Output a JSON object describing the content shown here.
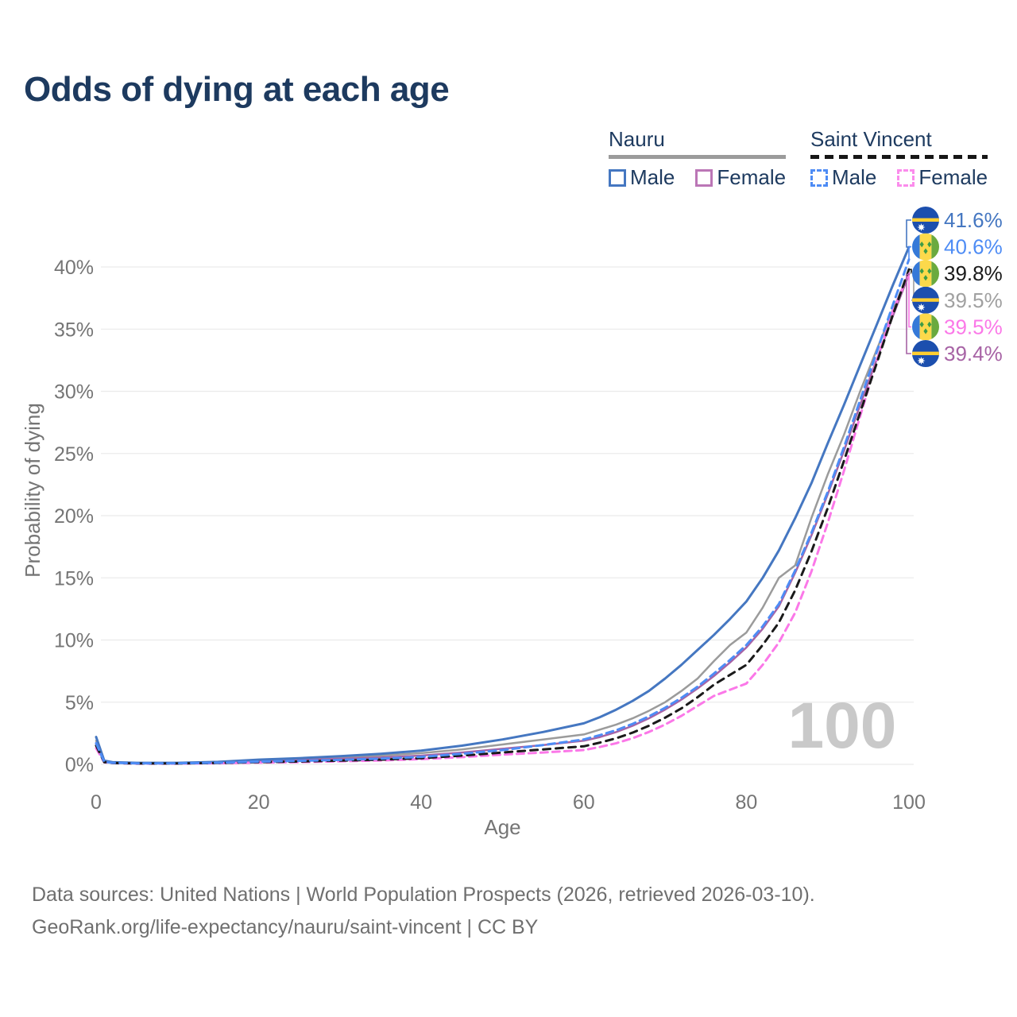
{
  "title": "Odds of dying at each age",
  "legend": {
    "groups": [
      {
        "name": "Nauru",
        "line_style": "solid",
        "underline_color": "#9b9b9b",
        "items": [
          {
            "label": "Male",
            "color": "#4577c1",
            "dashed": false
          },
          {
            "label": "Female",
            "color": "#bb76b6",
            "dashed": false
          }
        ]
      },
      {
        "name": "Saint Vincent",
        "line_style": "dashed",
        "underline_color": "#161616",
        "items": [
          {
            "label": "Male",
            "color": "#4e8cf5",
            "dashed": true
          },
          {
            "label": "Female",
            "color": "#fb8cec",
            "dashed": true
          }
        ]
      }
    ]
  },
  "chart_data": {
    "type": "line",
    "title": "Odds of dying at each age",
    "xlabel": "Age",
    "ylabel": "Probability of dying",
    "xlim": [
      0,
      100
    ],
    "ylim": [
      0,
      43.5
    ],
    "grid": "horizontal",
    "x_ticks": [
      0,
      20,
      40,
      60,
      80,
      100
    ],
    "x_tick_labels": [
      "0",
      "20",
      "40",
      "60",
      "80",
      "100"
    ],
    "y_ticks": [
      0,
      5,
      10,
      15,
      20,
      25,
      30,
      35,
      40
    ],
    "y_tick_labels": [
      "0%",
      "5%",
      "10%",
      "15%",
      "20%",
      "25%",
      "30%",
      "35%",
      "40%"
    ],
    "hover_age_indicator": "100",
    "legend_position": "top-right",
    "x": [
      0,
      1,
      2,
      5,
      10,
      15,
      20,
      25,
      30,
      35,
      40,
      45,
      50,
      55,
      60,
      62,
      64,
      66,
      68,
      70,
      72,
      74,
      76,
      78,
      80,
      82,
      84,
      86,
      88,
      90,
      92,
      94,
      96,
      98,
      100
    ],
    "series": [
      {
        "name": "Nauru Both sexes",
        "country": "Nauru",
        "sex": "Both",
        "color": "#9b9b9b",
        "dash": "",
        "width": 2.5,
        "values": [
          1.9,
          0.28,
          0.16,
          0.1,
          0.1,
          0.18,
          0.33,
          0.42,
          0.55,
          0.7,
          0.9,
          1.2,
          1.6,
          2.0,
          2.4,
          2.8,
          3.2,
          3.7,
          4.3,
          5.0,
          5.9,
          6.9,
          8.3,
          9.6,
          10.6,
          12.6,
          15.0,
          16.0,
          19.8,
          23.3,
          26.5,
          30.0,
          33.3,
          36.5,
          39.5
        ]
      },
      {
        "name": "Nauru Female",
        "country": "Nauru",
        "sex": "Female",
        "color": "#a763a5",
        "dash": "",
        "width": 2.5,
        "values": [
          1.6,
          0.22,
          0.13,
          0.09,
          0.09,
          0.15,
          0.28,
          0.35,
          0.45,
          0.55,
          0.7,
          0.95,
          1.25,
          1.55,
          1.9,
          2.2,
          2.6,
          3.1,
          3.7,
          4.4,
          5.2,
          6.1,
          7.1,
          8.2,
          9.4,
          10.9,
          12.7,
          15.4,
          18.4,
          21.7,
          25.2,
          28.9,
          32.5,
          36.0,
          39.4
        ]
      },
      {
        "name": "Nauru Male",
        "country": "Nauru",
        "sex": "Male",
        "color": "#4577c1",
        "dash": "",
        "width": 3,
        "values": [
          2.2,
          0.3,
          0.18,
          0.12,
          0.12,
          0.2,
          0.38,
          0.5,
          0.65,
          0.85,
          1.1,
          1.5,
          2.0,
          2.6,
          3.3,
          3.8,
          4.4,
          5.1,
          5.9,
          6.9,
          8.0,
          9.2,
          10.4,
          11.7,
          13.1,
          15.0,
          17.2,
          19.8,
          22.6,
          25.8,
          28.9,
          32.1,
          35.3,
          38.5,
          41.6
        ]
      },
      {
        "name": "Saint Vincent Female",
        "country": "Saint Vincent",
        "sex": "Female",
        "color": "#fb78e8",
        "dash": "9 6",
        "width": 3,
        "values": [
          1.3,
          0.16,
          0.1,
          0.06,
          0.06,
          0.09,
          0.14,
          0.18,
          0.24,
          0.31,
          0.42,
          0.58,
          0.78,
          0.95,
          1.15,
          1.4,
          1.7,
          2.1,
          2.6,
          3.2,
          3.9,
          4.7,
          5.5,
          6.0,
          6.5,
          8.0,
          9.8,
          12.2,
          15.5,
          19.4,
          23.6,
          28.0,
          32.4,
          36.4,
          39.5
        ]
      },
      {
        "name": "Saint Vincent Both sexes",
        "country": "Saint Vincent",
        "sex": "Both",
        "color": "#1a1a1a",
        "dash": "9 7",
        "width": 3,
        "values": [
          1.5,
          0.18,
          0.11,
          0.07,
          0.07,
          0.11,
          0.18,
          0.23,
          0.3,
          0.38,
          0.5,
          0.7,
          0.95,
          1.2,
          1.45,
          1.75,
          2.1,
          2.55,
          3.1,
          3.75,
          4.5,
          5.4,
          6.4,
          7.2,
          8.0,
          9.6,
          11.4,
          14.0,
          17.1,
          20.6,
          24.4,
          28.3,
          32.2,
          36.1,
          39.8
        ]
      },
      {
        "name": "Saint Vincent Male",
        "country": "Saint Vincent",
        "sex": "Male",
        "color": "#4e8cf5",
        "dash": "9 6",
        "width": 3,
        "values": [
          1.7,
          0.2,
          0.12,
          0.08,
          0.08,
          0.13,
          0.22,
          0.28,
          0.36,
          0.46,
          0.6,
          0.85,
          1.15,
          1.55,
          2.0,
          2.35,
          2.75,
          3.25,
          3.85,
          4.55,
          5.35,
          6.25,
          7.3,
          8.4,
          9.6,
          11.1,
          12.9,
          15.6,
          18.6,
          21.9,
          25.5,
          29.3,
          33.1,
          36.9,
          40.6
        ]
      }
    ],
    "end_labels": [
      {
        "text": "41.6%",
        "value": 41.6,
        "flag": "nauru",
        "series": "Nauru Male",
        "color": "#4577c1"
      },
      {
        "text": "40.6%",
        "value": 40.6,
        "flag": "saint-vincent",
        "series": "Saint Vincent Male",
        "color": "#4e8cf5"
      },
      {
        "text": "39.8%",
        "value": 39.8,
        "flag": "saint-vincent",
        "series": "Saint Vincent Both sexes",
        "color": "#1a1a1a"
      },
      {
        "text": "39.5%",
        "value": 39.5,
        "flag": "nauru",
        "series": "Nauru Both sexes",
        "color": "#a0a0a0"
      },
      {
        "text": "39.5%",
        "value": 39.5,
        "flag": "saint-vincent",
        "series": "Saint Vincent Female",
        "color": "#fb78e8"
      },
      {
        "text": "39.4%",
        "value": 39.4,
        "flag": "nauru",
        "series": "Nauru Female",
        "color": "#a763a5"
      }
    ],
    "flag_colors": {
      "nauru": {
        "background": "#1c4fae",
        "stripe": "#ffce31",
        "star": "#ffffff"
      },
      "saint_vincent": {
        "blue": "#3579d8",
        "yellow": "#fcd94b",
        "green": "#6aaa3f",
        "diamond": "#3c9c47"
      }
    },
    "axis_text_color": "#757575",
    "gridline_color": "#ebebeb",
    "watermark_color": "#c9c9c9"
  },
  "footer": {
    "line1": "Data sources: United Nations | World Population Prospects (2026, retrieved 2026-03-10).",
    "line2": "GeoRank.org/life-expectancy/nauru/saint-vincent | CC BY"
  }
}
